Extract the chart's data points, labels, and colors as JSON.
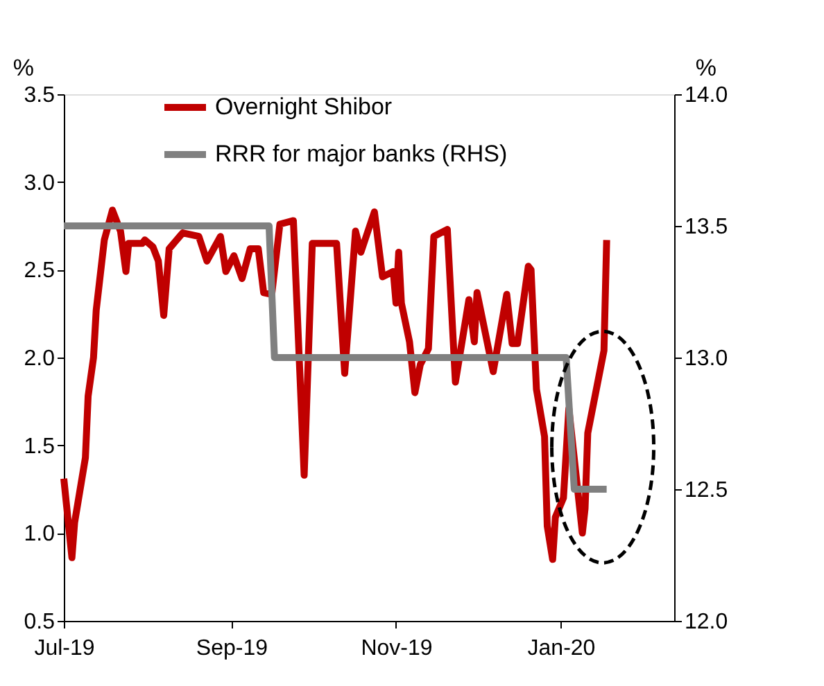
{
  "chart_data": {
    "type": "line",
    "xlabel": null,
    "ylabel": "%",
    "y2label": "%",
    "legend": "top left",
    "grid": false,
    "marker": "none",
    "line_style": "solid",
    "xlim": [
      "2019-07-01",
      "2020-02-12"
    ],
    "xticks": [
      {
        "value": "2019-07-01",
        "label": "Jul-19"
      },
      {
        "value": "2019-09-01",
        "label": "Sep-19"
      },
      {
        "value": "2019-11-01",
        "label": "Nov-19"
      },
      {
        "value": "2020-01-01",
        "label": "Jan-20"
      }
    ],
    "ylim": [
      0.5,
      3.5
    ],
    "yticks": [
      {
        "value": 0.5,
        "label": "0.5"
      },
      {
        "value": 1,
        "label": "1.0"
      },
      {
        "value": 1.5,
        "label": "1.5"
      },
      {
        "value": 2,
        "label": "2.0"
      },
      {
        "value": 2.5,
        "label": "2.5"
      },
      {
        "value": 3,
        "label": "3.0"
      },
      {
        "value": 3.5,
        "label": "3.5"
      }
    ],
    "y2lim": [
      12,
      14
    ],
    "y2ticks": [
      {
        "value": 12,
        "label": "12.0"
      },
      {
        "value": 12.5,
        "label": "12.5"
      },
      {
        "value": 13,
        "label": "13.0"
      },
      {
        "value": 13.5,
        "label": "13.5"
      },
      {
        "value": 14,
        "label": "14.0"
      }
    ],
    "series": [
      {
        "name": "Overnight Shibor",
        "color": "#c00000",
        "x": [
          "2019-07-01",
          "2019-07-04",
          "2019-07-05",
          "2019-07-09",
          "2019-07-10",
          "2019-07-12",
          "2019-07-13",
          "2019-07-16",
          "2019-07-19",
          "2019-07-22",
          "2019-07-24",
          "2019-07-25",
          "2019-07-30",
          "2019-07-31",
          "2019-08-03",
          "2019-08-05",
          "2019-08-07",
          "2019-08-09",
          "2019-08-14",
          "2019-08-20",
          "2019-08-23",
          "2019-08-28",
          "2019-08-30",
          "2019-09-02",
          "2019-09-05",
          "2019-09-08",
          "2019-09-11",
          "2019-09-13",
          "2019-09-16",
          "2019-09-19",
          "2019-09-24",
          "2019-09-28",
          "2019-10-01",
          "2019-10-10",
          "2019-10-13",
          "2019-10-17",
          "2019-10-19",
          "2019-10-24",
          "2019-10-27",
          "2019-10-31",
          "2019-11-01",
          "2019-11-02",
          "2019-11-03",
          "2019-11-06",
          "2019-11-08",
          "2019-11-10",
          "2019-11-13",
          "2019-11-15",
          "2019-11-20",
          "2019-11-23",
          "2019-11-28",
          "2019-11-30",
          "2019-12-01",
          "2019-12-07",
          "2019-12-12",
          "2019-12-14",
          "2019-12-16",
          "2019-12-20",
          "2019-12-21",
          "2019-12-23",
          "2019-12-26",
          "2019-12-27",
          "2019-12-29",
          "2019-12-30",
          "2020-01-02",
          "2020-01-04",
          "2020-01-09",
          "2020-01-10",
          "2020-01-11",
          "2020-01-17",
          "2020-01-18"
        ],
        "values": [
          1.31,
          0.86,
          1.06,
          1.43,
          1.78,
          2.0,
          2.27,
          2.67,
          2.84,
          2.72,
          2.49,
          2.65,
          2.65,
          2.67,
          2.63,
          2.55,
          2.24,
          2.62,
          2.71,
          2.69,
          2.55,
          2.69,
          2.49,
          2.58,
          2.45,
          2.62,
          2.62,
          2.37,
          2.36,
          2.76,
          2.78,
          1.33,
          2.65,
          2.65,
          1.91,
          2.72,
          2.6,
          2.83,
          2.46,
          2.49,
          2.31,
          2.6,
          2.31,
          2.09,
          1.8,
          1.96,
          2.05,
          2.69,
          2.73,
          1.86,
          2.33,
          2.09,
          2.37,
          1.92,
          2.36,
          2.08,
          2.08,
          2.52,
          2.5,
          1.82,
          1.55,
          1.04,
          0.85,
          1.09,
          1.2,
          1.71,
          1.0,
          1.14,
          1.57,
          2.04,
          2.67
        ]
      },
      {
        "name": "RRR for major banks (RHS)",
        "color": "#808080",
        "axis": "y2",
        "x": [
          "2019-07-01",
          "2019-09-15",
          "2019-09-17",
          "2020-01-03",
          "2020-01-06",
          "2020-01-18"
        ],
        "values": [
          13.5,
          13.5,
          13.0,
          13.0,
          12.5,
          12.5
        ]
      }
    ]
  }
}
